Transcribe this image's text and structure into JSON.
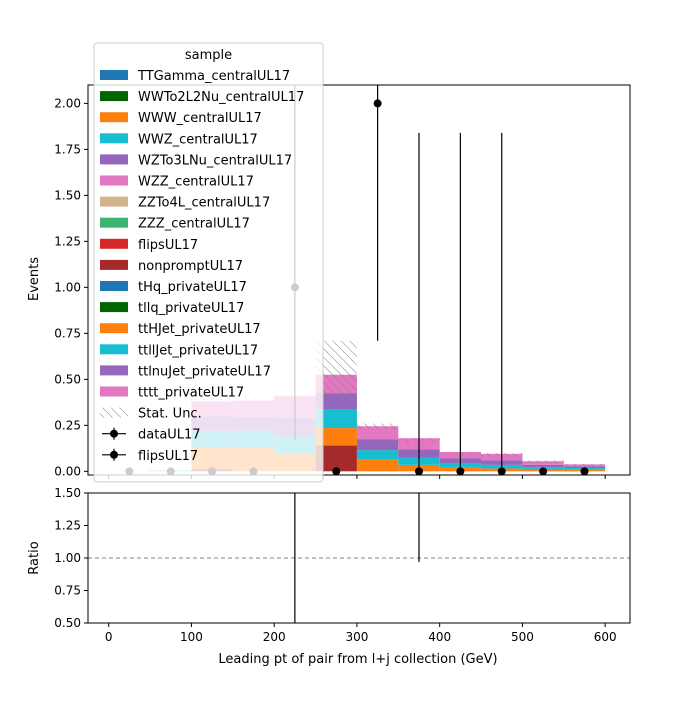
{
  "chart_data": {
    "type": "bar",
    "xlabel": "Leading pt of pair from l+j collection (GeV)",
    "top": {
      "ylabel": "Events",
      "ylim": [
        -0.02,
        2.1
      ],
      "yticks": [
        "0.00",
        "0.25",
        "0.50",
        "0.75",
        "1.00",
        "1.25",
        "1.50",
        "1.75",
        "2.00"
      ],
      "ytick_values": [
        0,
        0.25,
        0.5,
        0.75,
        1.0,
        1.25,
        1.5,
        1.75,
        2.0
      ]
    },
    "bottom": {
      "ylabel": "Ratio",
      "ylim": [
        0.5,
        1.5
      ],
      "yticks": [
        "0.50",
        "0.75",
        "1.00",
        "1.25",
        "1.50"
      ],
      "ytick_values": [
        0.5,
        0.75,
        1.0,
        1.25,
        1.5
      ],
      "reference_line": 1.0
    },
    "xlim": [
      -25,
      630
    ],
    "xticks": [
      "0",
      "100",
      "200",
      "300",
      "400",
      "500",
      "600"
    ],
    "xtick_values": [
      0,
      100,
      200,
      300,
      400,
      500,
      600
    ],
    "bin_edges": [
      0,
      50,
      100,
      150,
      200,
      250,
      300,
      350,
      400,
      450,
      500,
      550,
      600
    ],
    "legend": {
      "title": "sample",
      "placement": "upper-left",
      "entries": [
        {
          "label": "TTGamma_centralUL17",
          "color": "#1f77b4",
          "kind": "patch"
        },
        {
          "label": "WWTo2L2Nu_centralUL17",
          "color": "#006400",
          "kind": "patch"
        },
        {
          "label": "WWW_centralUL17",
          "color": "#ff7f0e",
          "kind": "patch"
        },
        {
          "label": "WWZ_centralUL17",
          "color": "#17becf",
          "kind": "patch"
        },
        {
          "label": "WZTo3LNu_centralUL17",
          "color": "#9467bd",
          "kind": "patch"
        },
        {
          "label": "WZZ_centralUL17",
          "color": "#e377c2",
          "kind": "patch"
        },
        {
          "label": "ZZTo4L_centralUL17",
          "color": "#d2b48c",
          "kind": "patch"
        },
        {
          "label": "ZZZ_centralUL17",
          "color": "#3cb371",
          "kind": "patch"
        },
        {
          "label": "flipsUL17",
          "color": "#d62728",
          "kind": "patch"
        },
        {
          "label": "nonpromptUL17",
          "color": "#a52a2a",
          "kind": "patch"
        },
        {
          "label": "tHq_privateUL17",
          "color": "#1f77b4",
          "kind": "patch"
        },
        {
          "label": "tllq_privateUL17",
          "color": "#006400",
          "kind": "patch"
        },
        {
          "label": "ttHJet_privateUL17",
          "color": "#ff7f0e",
          "kind": "patch"
        },
        {
          "label": "ttllJet_privateUL17",
          "color": "#17becf",
          "kind": "patch"
        },
        {
          "label": "ttlnuJet_privateUL17",
          "color": "#9467bd",
          "kind": "patch"
        },
        {
          "label": "tttt_privateUL17",
          "color": "#e377c2",
          "kind": "patch"
        },
        {
          "label": "Stat. Unc.",
          "color": "#808080",
          "kind": "hatch"
        },
        {
          "label": "dataUL17",
          "color": "#000000",
          "kind": "errorbar"
        },
        {
          "label": "flipsUL17",
          "color": "#000000",
          "kind": "errorbar"
        }
      ]
    },
    "series": [
      {
        "name": "nonpromptUL17",
        "color": "#a52a2a",
        "values": [
          0,
          0,
          0.01,
          0,
          0,
          0.14,
          0,
          0,
          0,
          0,
          0,
          0
        ]
      },
      {
        "name": "ttHJet_privateUL17",
        "color": "#ff7f0e",
        "values": [
          0,
          0,
          0.12,
          0.13,
          0.1,
          0.095,
          0.065,
          0.035,
          0.02,
          0.015,
          0.01,
          0.008
        ]
      },
      {
        "name": "ttllJet_privateUL17",
        "color": "#17becf",
        "values": [
          0,
          0.005,
          0.09,
          0.09,
          0.09,
          0.1,
          0.05,
          0.04,
          0.025,
          0.02,
          0.013,
          0.01
        ]
      },
      {
        "name": "ttlnuJet_privateUL17",
        "color": "#9467bd",
        "values": [
          0,
          0,
          0.08,
          0.075,
          0.1,
          0.09,
          0.06,
          0.045,
          0.025,
          0.025,
          0.012,
          0.01
        ]
      },
      {
        "name": "tttt_privateUL17",
        "color": "#e377c2",
        "values": [
          0,
          0,
          0.08,
          0.09,
          0.12,
          0.1,
          0.07,
          0.06,
          0.035,
          0.035,
          0.02,
          0.01
        ]
      }
    ],
    "stat_unc": {
      "color": "#808080",
      "lower": [
        0,
        0,
        0.38,
        0.39,
        0.41,
        0.41,
        0.23,
        0.16,
        0.09,
        0.08,
        0.045,
        0.03
      ],
      "upper": [
        0,
        0,
        0.4,
        0.4,
        0.42,
        0.71,
        0.26,
        0.18,
        0.1,
        0.1,
        0.06,
        0.04
      ]
    },
    "data_points": {
      "name": "dataUL17",
      "x": [
        25,
        75,
        125,
        175,
        225,
        275,
        325,
        375,
        425,
        475,
        525,
        575
      ],
      "y": [
        0,
        0,
        0,
        0,
        1,
        0,
        2,
        0,
        0,
        0,
        0,
        0
      ],
      "yerr_low": [
        0,
        0,
        0,
        0,
        0.83,
        0,
        1.29,
        0,
        0,
        0,
        0,
        0
      ],
      "yerr_high": [
        0,
        0,
        0,
        0,
        2.3,
        0,
        2.63,
        1.84,
        1.84,
        1.84,
        0,
        0
      ]
    },
    "ratio_points": {
      "x": [
        225,
        375
      ],
      "y_low": [
        0.5,
        0.97
      ],
      "y_high": [
        1.5,
        1.5
      ]
    }
  }
}
